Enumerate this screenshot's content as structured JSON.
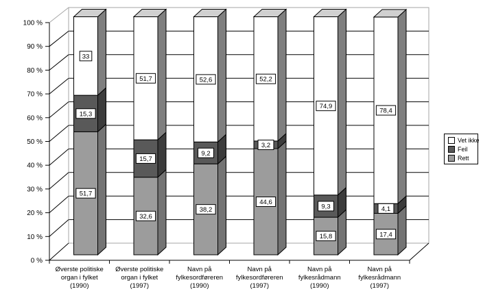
{
  "chart_data": {
    "type": "bar",
    "subtype": "3d-stacked-percent-column",
    "title": "",
    "categories": [
      [
        "Øverste politiske",
        "organ i fylket",
        "(1990)"
      ],
      [
        "Øverste politiske",
        "organ i fylket",
        "(1997)"
      ],
      [
        "Navn på",
        "fylkesordføreren",
        "(1990)"
      ],
      [
        "Navn på",
        "fylkesordføreren",
        "(1997)"
      ],
      [
        "Navn på",
        "fylkesrådmann",
        "(1990)"
      ],
      [
        "Navn på",
        "fylkesrådmann",
        "(1997)"
      ]
    ],
    "series": [
      {
        "name": "Rett",
        "values": [
          51.7,
          32.6,
          38.2,
          44.6,
          15.8,
          17.4
        ],
        "labels": [
          "51,7",
          "32,6",
          "38,2",
          "44,6",
          "15,8",
          "17,4"
        ],
        "front_color": "#9C9C9C",
        "side_color": "#747474",
        "top_color": "#C4C4C4"
      },
      {
        "name": "Feil",
        "values": [
          15.3,
          15.7,
          9.2,
          3.2,
          9.3,
          4.1
        ],
        "labels": [
          "15,3",
          "15,7",
          "9,2",
          "3,2",
          "9,3",
          "4,1"
        ],
        "front_color": "#595959",
        "side_color": "#3C3C3C",
        "top_color": "#8A8A8A"
      },
      {
        "name": "Vet ikke",
        "values": [
          33,
          51.7,
          52.6,
          52.2,
          74.9,
          78.4
        ],
        "labels": [
          "33",
          "51,7",
          "52,6",
          "52,2",
          "74,9",
          "78,4"
        ],
        "front_color": "#FFFFFF",
        "side_color": "#7F7F7F",
        "top_color": "#D0D0D0"
      }
    ],
    "legend": {
      "position": "right",
      "entries": [
        "Vet ikke",
        "Feil",
        "Rett"
      ]
    },
    "y_axis": {
      "tick_labels": [
        "0 %",
        "10 %",
        "20 %",
        "30 %",
        "40 %",
        "50 %",
        "60 %",
        "70 %",
        "80 %",
        "90 %",
        "100 %"
      ],
      "min": 0,
      "max": 100,
      "step": 10
    },
    "grid": "horizontal",
    "colors": {
      "gridline": "#000000",
      "wall_edge": "#A6A6A6",
      "background": "#FFFFFF",
      "outline": "#000000",
      "label_box_bg": "#FFFFFF"
    }
  }
}
